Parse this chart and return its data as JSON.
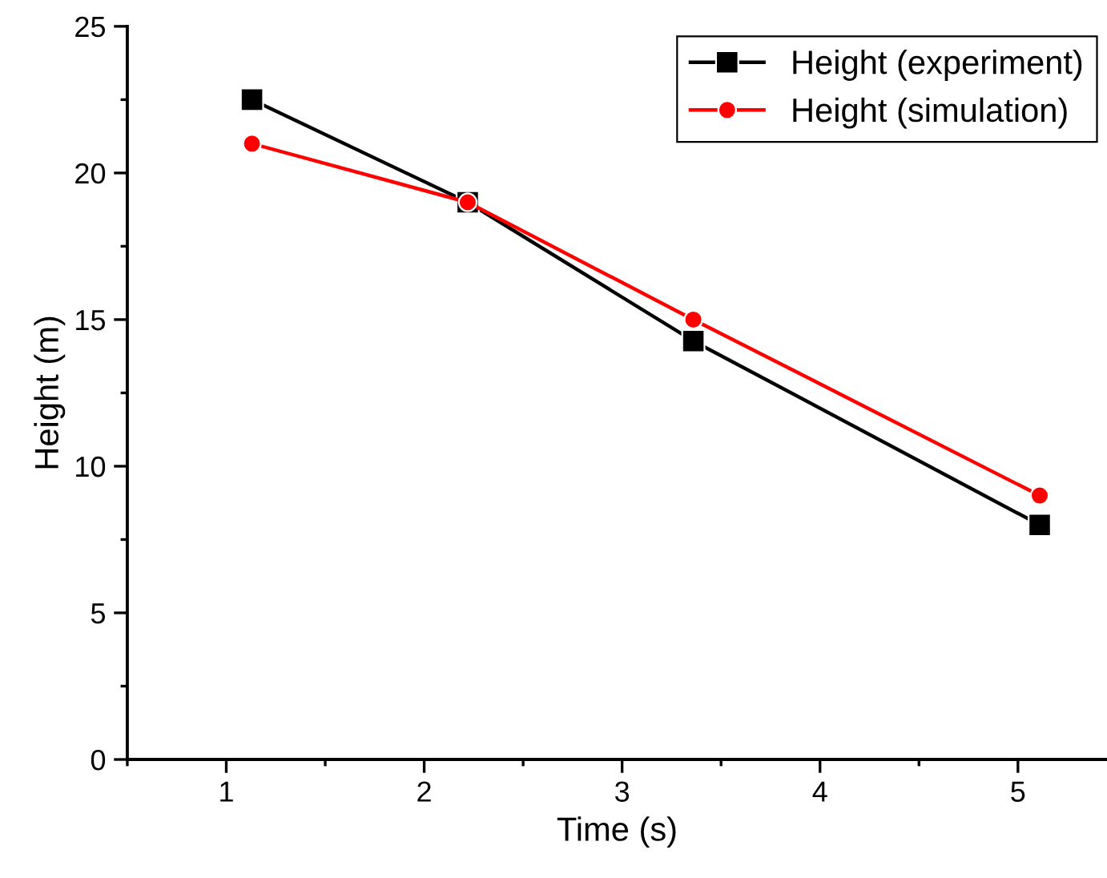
{
  "chart_data": {
    "type": "line",
    "xlabel": "Time (s)",
    "ylabel": "Height (m)",
    "xlim": [
      0.5,
      5.45
    ],
    "xticks": [
      1,
      2,
      3,
      4,
      5
    ],
    "ylim": [
      0,
      25
    ],
    "yticks": [
      0,
      5,
      10,
      15,
      20,
      25
    ],
    "legend": "top right",
    "grid": false,
    "series": [
      {
        "name": "Height (experiment)",
        "color": "#000000",
        "marker": "square",
        "x": [
          1.13,
          2.22,
          3.36,
          5.11
        ],
        "values": [
          22.5,
          19.0,
          14.27,
          8.0
        ]
      },
      {
        "name": "Height (simulation)",
        "color": "#ff0000",
        "marker": "circle",
        "x": [
          1.13,
          2.22,
          3.36,
          5.11
        ],
        "values": [
          21.0,
          19.0,
          15.0,
          9.0
        ]
      }
    ]
  }
}
